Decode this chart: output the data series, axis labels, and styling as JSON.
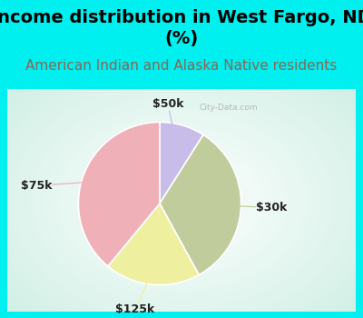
{
  "title": "Income distribution in West Fargo, ND\n(%)",
  "subtitle": "American Indian and Alaska Native residents",
  "slices": [
    {
      "label": "$50k",
      "value": 9,
      "color": "#c8bce8"
    },
    {
      "label": "$30k",
      "value": 33,
      "color": "#c0cc9c"
    },
    {
      "label": "$125k",
      "value": 19,
      "color": "#eef0a0"
    },
    {
      "label": "$75k",
      "value": 39,
      "color": "#f0b0b8"
    }
  ],
  "title_fontsize": 14,
  "subtitle_fontsize": 11,
  "label_fontsize": 9,
  "title_color": "#000000",
  "subtitle_color": "#886655",
  "bg_cyan": "#00f0f0",
  "watermark": "City-Data.com",
  "startangle": 90
}
